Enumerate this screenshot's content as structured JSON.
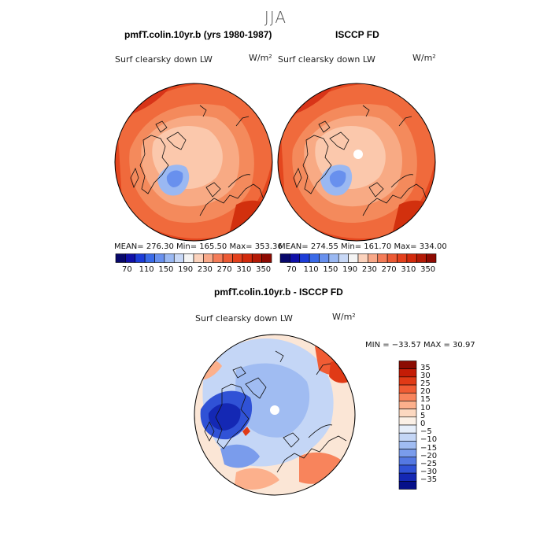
{
  "figure": {
    "season": "JJA"
  },
  "panels": [
    {
      "title": "pmfT.colin.10yr.b (yrs 1980-1987)",
      "variable": "Surf clearsky down LW",
      "units": "W/m²",
      "stats": "MEAN=  276.30   Min=  165.50   Max=  353.36"
    },
    {
      "title": "ISCCP FD",
      "variable": "Surf clearsky down LW",
      "units": "W/m²",
      "stats": "MEAN=  274.55   Min=  161.70   Max=  334.00"
    },
    {
      "title": "pmfT.colin.10yr.b - ISCCP FD",
      "variable": "Surf clearsky down LW",
      "units": "W/m²",
      "stats": "MIN = −33.57  MAX =   30.97"
    }
  ],
  "abs_colorbar": {
    "tick_labels": [
      "70",
      "110",
      "150",
      "190",
      "230",
      "270",
      "310",
      "350"
    ],
    "colors": [
      "#08086b",
      "#1010a8",
      "#1c3cd8",
      "#3a6ae8",
      "#6890ee",
      "#9ab8f2",
      "#c8d8f6",
      "#f4f4f4",
      "#fbd2bc",
      "#f8a888",
      "#f47c58",
      "#ec5a34",
      "#e4401c",
      "#d22a0c",
      "#b41a06",
      "#8e0a02"
    ]
  },
  "diff_colorbar": {
    "labels": [
      "35",
      "30",
      "25",
      "20",
      "15",
      "10",
      "5",
      "0",
      "−5",
      "−10",
      "−15",
      "−20",
      "−25",
      "−30",
      "−35"
    ],
    "colors": [
      "#8c0c02",
      "#c41c06",
      "#e03a16",
      "#f05c34",
      "#f8845c",
      "#fcb08c",
      "#fcd8c0",
      "#fbf0e6",
      "#e6eefa",
      "#c4d6f6",
      "#a0bcf2",
      "#7a9cec",
      "#5478e2",
      "#3052d6",
      "#1428b4",
      "#06108a"
    ]
  }
}
